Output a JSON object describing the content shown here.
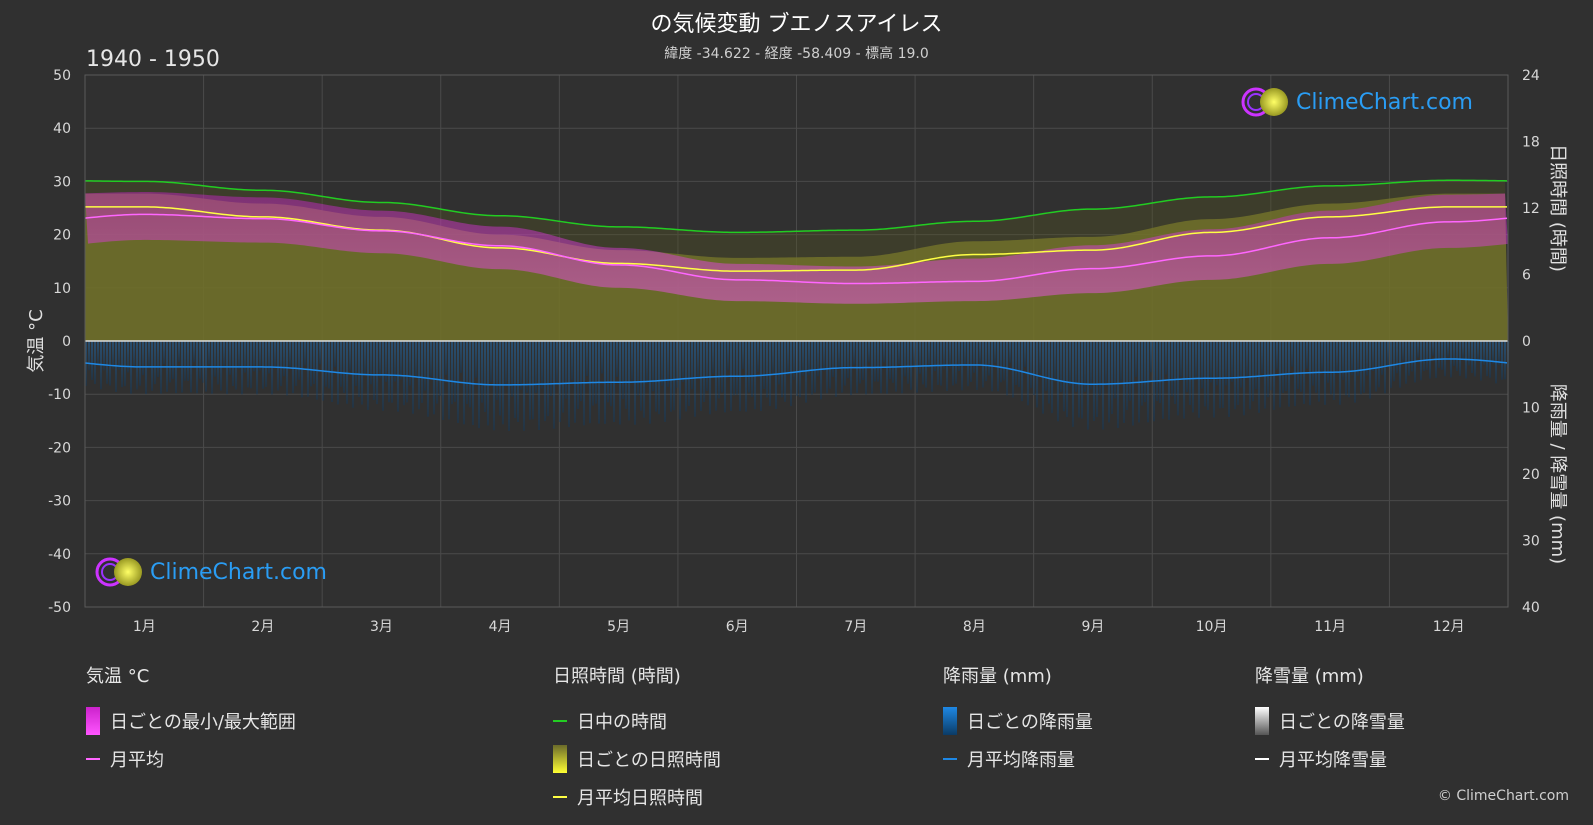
{
  "title": "の気候変動 ブエノスアイレス",
  "subtitle": "緯度 -34.622 - 経度 -58.409 - 標高 19.0",
  "period": "1940 - 1950",
  "copyright": "© ClimeChart.com",
  "logo": {
    "text": "ClimeChart.com"
  },
  "colors": {
    "background": "#303030",
    "daylight": "#22cc22",
    "sunshine_avg": "#ffff44",
    "sunshine_bar": "#9a9a30",
    "temp_avg": "#ff66ff",
    "temp_range": "#cc22cc",
    "rain": "#1e88e5",
    "snow": "#ffffff"
  },
  "legend": {
    "temp": {
      "title": "気温 °C",
      "range_label": "日ごとの最小/最大範囲",
      "avg_label": "月平均"
    },
    "sun": {
      "title": "日照時間 (時間)",
      "daylight_label": "日中の時間",
      "daily_label": "日ごとの日照時間",
      "avg_label": "月平均日照時間"
    },
    "rain": {
      "title": "降雨量 (mm)",
      "daily_label": "日ごとの降雨量",
      "avg_label": "月平均降雨量"
    },
    "snow": {
      "title": "降雪量 (mm)",
      "daily_label": "日ごとの降雪量",
      "avg_label": "月平均降雪量"
    }
  },
  "chart_data": {
    "type": "line",
    "x_tick_labels": [
      "1月",
      "2月",
      "3月",
      "4月",
      "5月",
      "6月",
      "7月",
      "8月",
      "9月",
      "10月",
      "11月",
      "12月"
    ],
    "y_left": {
      "label": "気温 °C",
      "ticks": [
        50,
        40,
        30,
        20,
        10,
        0,
        -10,
        -20,
        -30,
        -40,
        -50
      ],
      "range": [
        -50,
        50
      ]
    },
    "y_right_top": {
      "label": "日照時間 (時間)",
      "ticks": [
        24,
        18,
        12,
        6,
        0
      ],
      "range": [
        0,
        24
      ]
    },
    "y_right_bottom": {
      "label": "降雨量 / 降雪量 (mm)",
      "ticks": [
        0,
        10,
        20,
        30,
        40
      ],
      "range": [
        0,
        40
      ]
    },
    "series": [
      {
        "key": "daylight_hours",
        "values": [
          14.4,
          13.6,
          12.5,
          11.3,
          10.3,
          9.8,
          10.0,
          10.8,
          11.9,
          13.0,
          14.0,
          14.5
        ]
      },
      {
        "key": "sunshine_avg_hours",
        "values": [
          12.1,
          11.2,
          10.0,
          8.4,
          7.0,
          6.3,
          6.4,
          7.8,
          8.2,
          9.8,
          11.2,
          12.1
        ]
      },
      {
        "key": "temp_avg",
        "values": [
          23.8,
          23.0,
          20.7,
          17.9,
          14.3,
          11.5,
          10.8,
          11.2,
          13.6,
          16.0,
          19.4,
          22.4
        ]
      },
      {
        "key": "temp_max",
        "values": [
          28.0,
          27.0,
          24.5,
          21.5,
          17.5,
          14.5,
          14.0,
          15.5,
          18.0,
          21.0,
          24.5,
          27.5
        ]
      },
      {
        "key": "temp_min",
        "values": [
          19.0,
          18.5,
          16.5,
          13.5,
          10.0,
          7.5,
          7.0,
          7.5,
          9.0,
          11.5,
          14.5,
          17.5
        ]
      },
      {
        "key": "rain_avg_mm",
        "values": [
          3.9,
          3.9,
          5.1,
          6.6,
          6.2,
          5.3,
          4.0,
          3.6,
          6.5,
          5.6,
          4.7,
          2.7
        ]
      }
    ]
  }
}
